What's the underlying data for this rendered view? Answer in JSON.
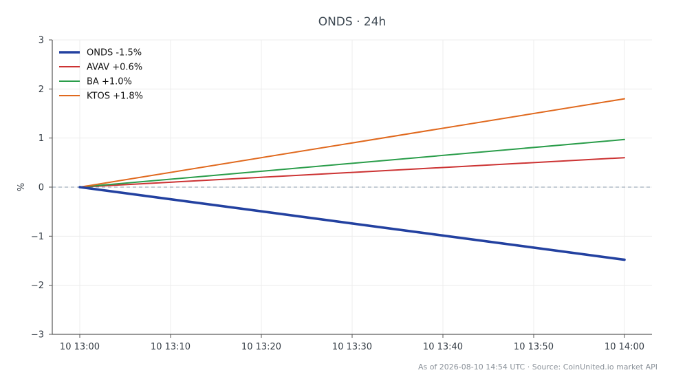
{
  "chart_data": {
    "type": "line",
    "title": "ONDS · 24h",
    "xlabel": "",
    "ylabel": "%",
    "x": [
      "10 13:00",
      "10 14:00"
    ],
    "x_minutes": [
      0,
      60
    ],
    "x_ticks": [
      "10 13:00",
      "10 13:10",
      "10 13:20",
      "10 13:30",
      "10 13:40",
      "10 13:50",
      "10 14:00"
    ],
    "y_ticks": [
      "3",
      "2",
      "1",
      "0",
      "−1",
      "−2",
      "−3"
    ],
    "ylim": [
      -3,
      3
    ],
    "grid": true,
    "zero_line": true,
    "legend_position": "top-left",
    "series": [
      {
        "name": "ONDS -1.5%",
        "values": [
          0,
          -1.48
        ],
        "color": "#2341a0",
        "emphasis": true
      },
      {
        "name": "AVAV +0.6%",
        "values": [
          0,
          0.6
        ],
        "color": "#cc3333",
        "emphasis": false
      },
      {
        "name": "BA +1.0%",
        "values": [
          0,
          0.97
        ],
        "color": "#2a9d4a",
        "emphasis": false
      },
      {
        "name": "KTOS +1.8%",
        "values": [
          0,
          1.8
        ],
        "color": "#e0691e",
        "emphasis": false
      }
    ]
  },
  "footer": "As of 2026-08-10 14:54 UTC · Source: CoinUnited.io market API"
}
